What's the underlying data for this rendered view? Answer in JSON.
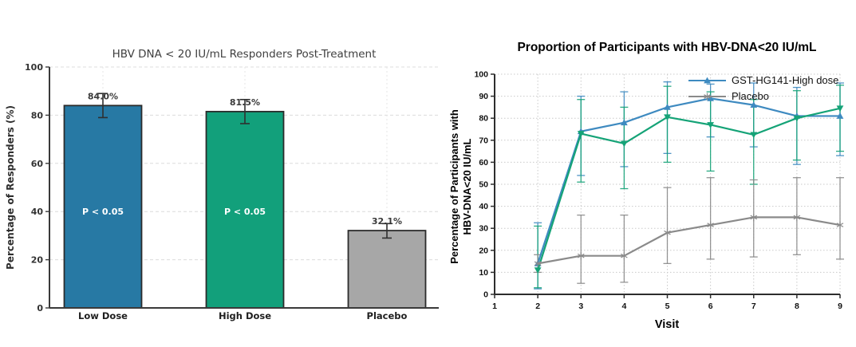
{
  "page": {
    "background": "#ffffff"
  },
  "chart_data": [
    {
      "type": "bar",
      "title": "HBV DNA < 20 IU/mL Responders Post-Treatment",
      "xlabel": "",
      "ylabel": "Percentage of Responders (%)",
      "categories": [
        "Low Dose",
        "High Dose",
        "Placebo"
      ],
      "values": [
        84.0,
        81.5,
        32.1
      ],
      "bar_labels": [
        "84.0%",
        "81.5%",
        "32.1%"
      ],
      "error_low": [
        79,
        76.5,
        29
      ],
      "error_high": [
        89,
        86.5,
        35
      ],
      "bar_annotations": [
        "P < 0.05",
        "P < 0.05",
        ""
      ],
      "bar_colors": [
        "#2779a4",
        "#12a07b",
        "#a7a7a7"
      ],
      "bar_edge_color": "#2b2b2b",
      "yticks": [
        0,
        20,
        40,
        60,
        80,
        100
      ],
      "ylim": [
        0,
        100
      ],
      "grid": "dashed horizontal + faint vertical at bar centers",
      "legend_position": "none"
    },
    {
      "type": "line",
      "title": "Proportion of Participants with HBV-DNA<20 IU/mL",
      "xlabel": "Visit",
      "ylabel": "Percentage of Participants with HBV-DNA<20 IU/mL",
      "ylabel_line1": "Percentage of Participants with",
      "ylabel_line2": "HBV-DNA<20 IU/mL",
      "xticks": [
        1,
        2,
        3,
        4,
        5,
        6,
        7,
        8,
        9
      ],
      "yticks": [
        0,
        10,
        20,
        30,
        40,
        50,
        60,
        70,
        80,
        90,
        100
      ],
      "xlim": [
        1,
        9
      ],
      "ylim": [
        0,
        100
      ],
      "grid": "dotted horizontal and vertical",
      "legend_position": "top-right",
      "series": [
        {
          "name": "GST-HG141-High dose",
          "show_in_legend": true,
          "color": "#3e8ac0",
          "marker": "triangle-up",
          "x": [
            2,
            3,
            4,
            5,
            6,
            7,
            8,
            9
          ],
          "y": [
            14,
            74,
            78,
            85,
            89,
            86,
            81,
            81
          ],
          "error_low": [
            2.5,
            54,
            58,
            64,
            71.5,
            67,
            59,
            63
          ],
          "error_high": [
            32.5,
            90,
            92,
            96.5,
            95.5,
            96,
            94,
            96
          ]
        },
        {
          "name": "",
          "show_in_legend": false,
          "color": "#15a377",
          "marker": "triangle-down",
          "x": [
            2,
            3,
            4,
            5,
            6,
            7,
            8,
            9
          ],
          "y": [
            11,
            73,
            68.5,
            80.5,
            77,
            72.5,
            80,
            84.5
          ],
          "error_low": [
            3,
            51,
            48,
            60,
            56,
            50,
            61,
            65
          ],
          "error_high": [
            31,
            88.5,
            85,
            94.5,
            92,
            88.5,
            92.5,
            95
          ]
        },
        {
          "name": "Placebo",
          "show_in_legend": true,
          "color": "#8a8a8a",
          "marker": "star",
          "x": [
            2,
            3,
            4,
            5,
            6,
            7,
            8,
            9
          ],
          "y": [
            14,
            17.5,
            17.5,
            28,
            31.5,
            35,
            35,
            31.5
          ],
          "error_low": [
            10,
            5,
            5.5,
            14,
            16,
            17,
            18,
            16
          ],
          "error_high": [
            18,
            36,
            36,
            48.5,
            53,
            52,
            53,
            53
          ]
        }
      ]
    }
  ]
}
